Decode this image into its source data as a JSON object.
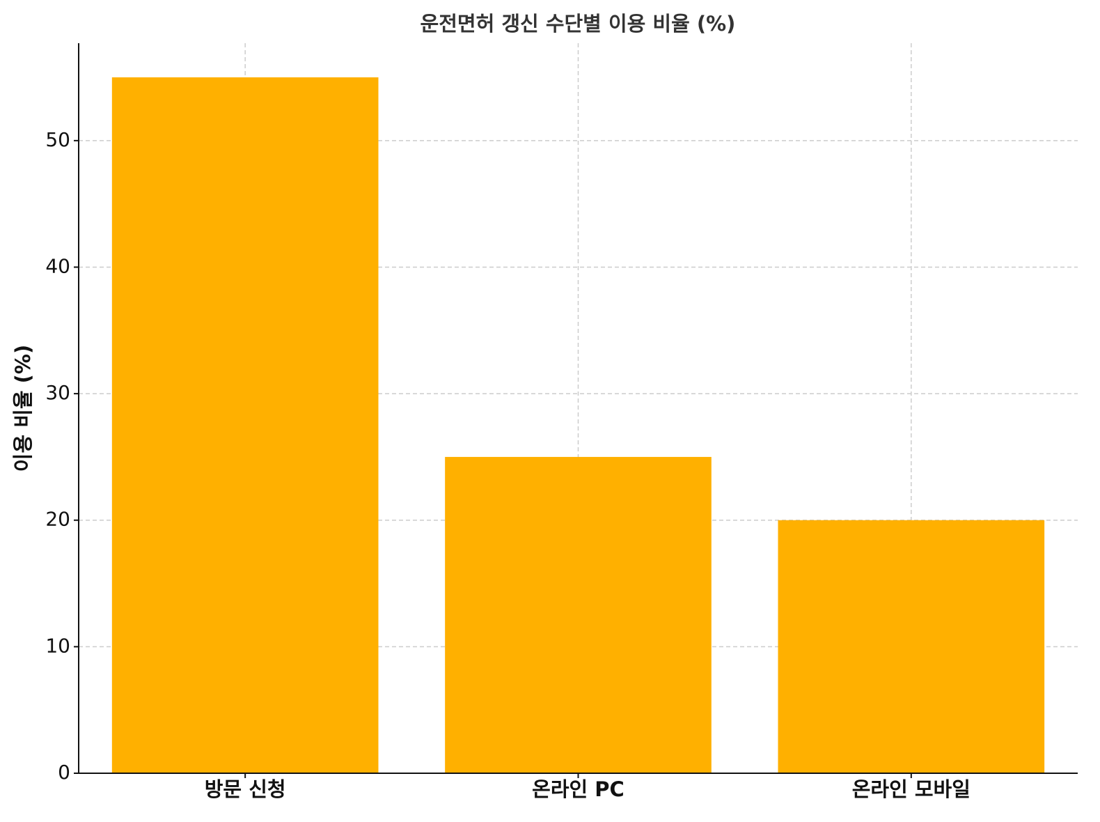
{
  "chart_data": {
    "type": "bar",
    "title": "운전면허 갱신 수단별 이용 비율 (%)",
    "ylabel": "이용 비율 (%)",
    "categories": [
      "방문 신청",
      "온라인 PC",
      "온라인 모바일"
    ],
    "values": [
      55,
      25,
      20
    ],
    "color": "#ffb000",
    "ylim": [
      0,
      57.7
    ],
    "yticks": [
      0,
      10,
      20,
      30,
      40,
      50
    ],
    "grid": true
  }
}
